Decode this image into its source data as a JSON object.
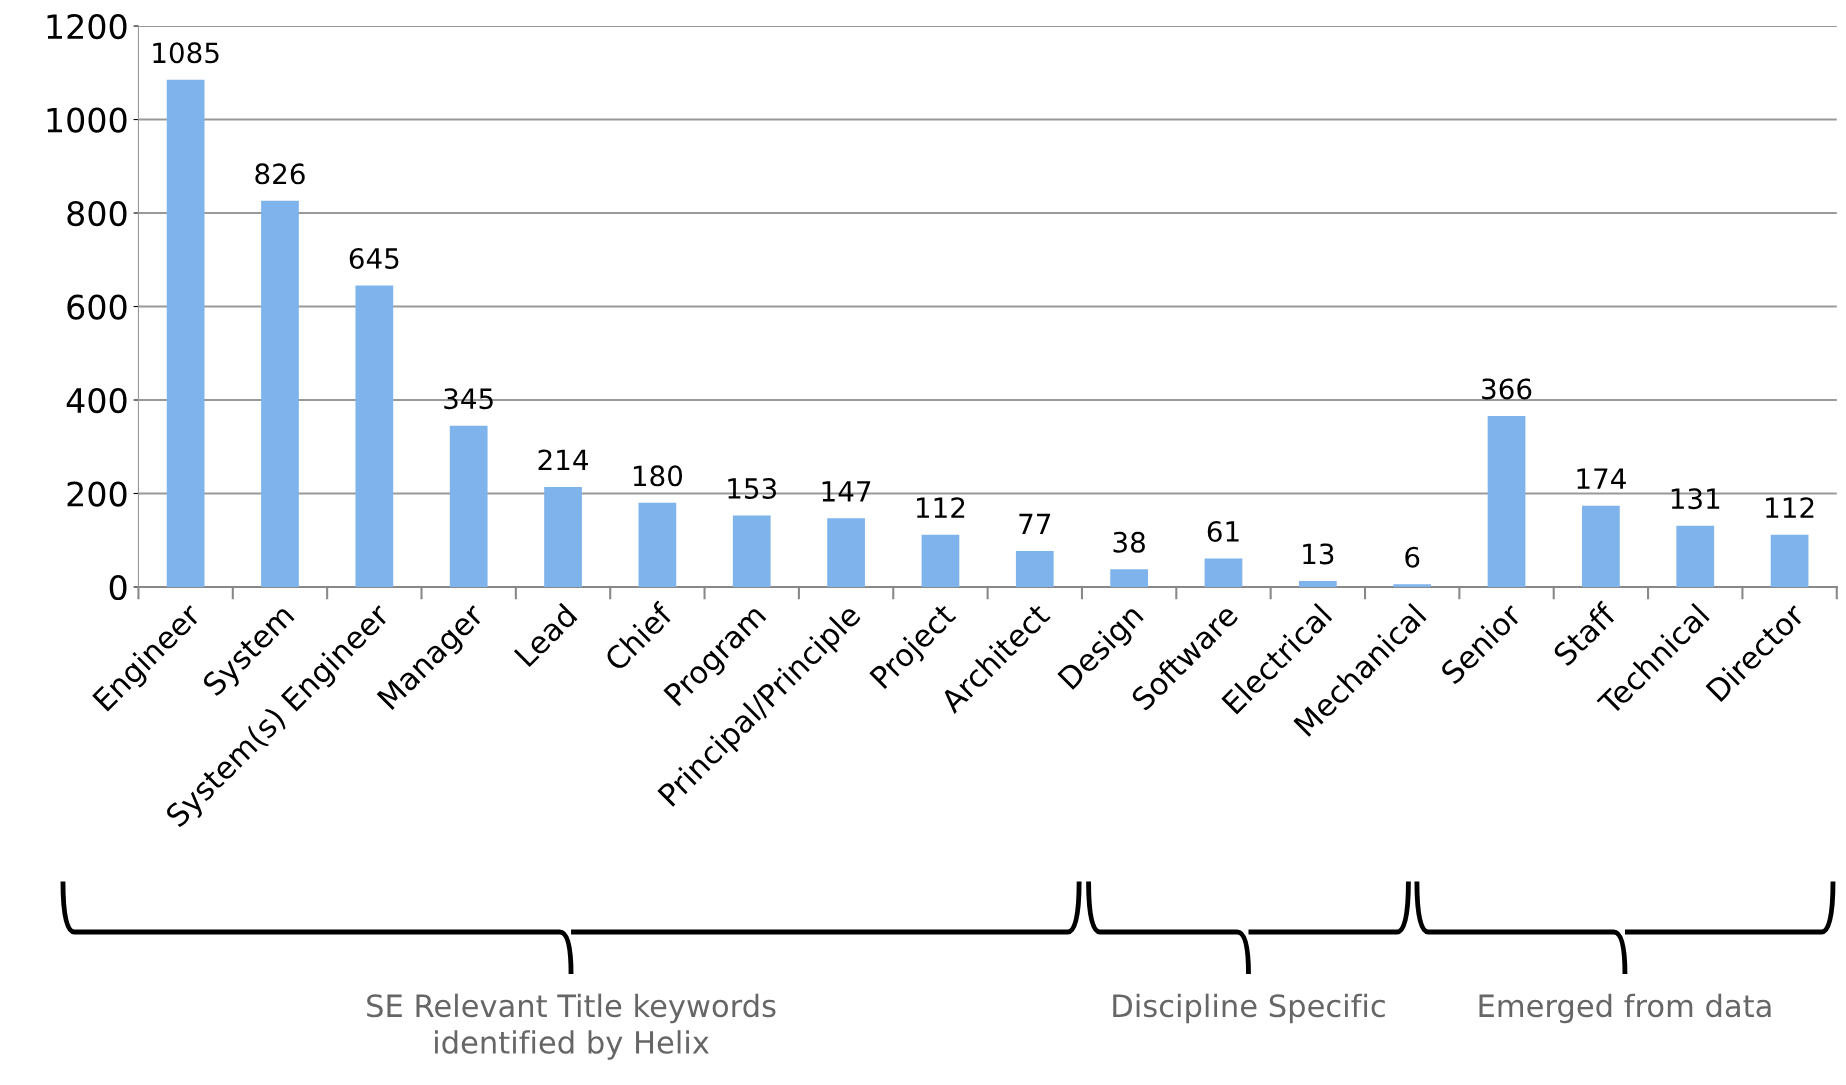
{
  "chart_data": {
    "type": "bar",
    "categories": [
      "Engineer",
      "System",
      "System(s) Engineer",
      "Manager",
      "Lead",
      "Chief",
      "Program",
      "Principal/Principle",
      "Project",
      "Architect",
      "Design",
      "Software",
      "Electrical",
      "Mechanical",
      "Senior",
      "Staff",
      "Technical",
      "Director"
    ],
    "values": [
      1085,
      826,
      645,
      345,
      214,
      180,
      153,
      147,
      112,
      77,
      38,
      61,
      13,
      6,
      366,
      174,
      131,
      112
    ],
    "color": "#7fb3ec",
    "ylim": [
      0,
      1200
    ],
    "yticks": [
      0,
      200,
      400,
      600,
      800,
      1000,
      1200
    ],
    "grid": "y",
    "data_labels": true,
    "annotations": [
      "SE Relevant Title keywords\nidentified by Helix",
      "Discipline Specific",
      "Emerged from data"
    ]
  }
}
